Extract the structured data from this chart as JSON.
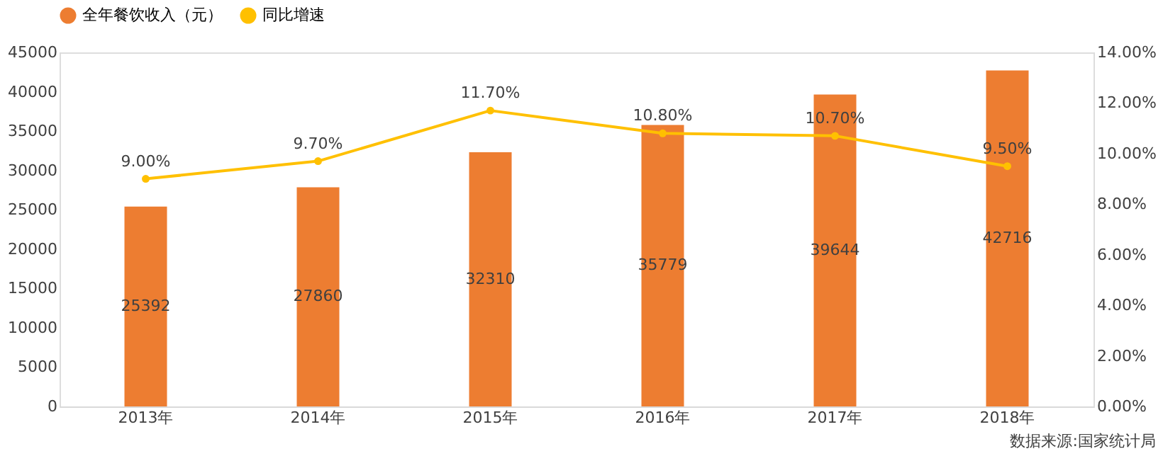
{
  "chart_data": {
    "type": "bar",
    "categories": [
      "2013年",
      "2014年",
      "2015年",
      "2016年",
      "2017年",
      "2018年"
    ],
    "series": [
      {
        "name": "全年餐饮收入（元）",
        "color": "#ed7d31",
        "values": [
          25392,
          27860,
          32310,
          35779,
          39644,
          42716
        ],
        "value_labels": [
          "25392",
          "27860",
          "32310",
          "35779",
          "39644",
          "42716"
        ]
      },
      {
        "name": "同比增速",
        "type": "line",
        "axis": "y2",
        "color": "#ffc000",
        "marker": "circle",
        "values": [
          9.0,
          9.7,
          11.7,
          10.8,
          10.7,
          9.5
        ],
        "value_labels": [
          "9.00%",
          "9.70%",
          "11.70%",
          "10.80%",
          "10.70%",
          "9.50%"
        ]
      }
    ],
    "ylim": [
      0,
      45000
    ],
    "yticks": [
      0,
      5000,
      10000,
      15000,
      20000,
      25000,
      30000,
      35000,
      40000,
      45000
    ],
    "y2lim": [
      0,
      14
    ],
    "y2ticks": [
      {
        "value": 0,
        "label": "0.00%"
      },
      {
        "value": 2,
        "label": "2.00%"
      },
      {
        "value": 4,
        "label": "4.00%"
      },
      {
        "value": 6,
        "label": "6.00%"
      },
      {
        "value": 8,
        "label": "8.00%"
      },
      {
        "value": 10,
        "label": "10.00%"
      },
      {
        "value": 12,
        "label": "12.00%"
      },
      {
        "value": 14,
        "label": "14.00%"
      }
    ],
    "grid": false,
    "legend": "top",
    "annotations": [
      "数据来源:国家统计局"
    ]
  }
}
